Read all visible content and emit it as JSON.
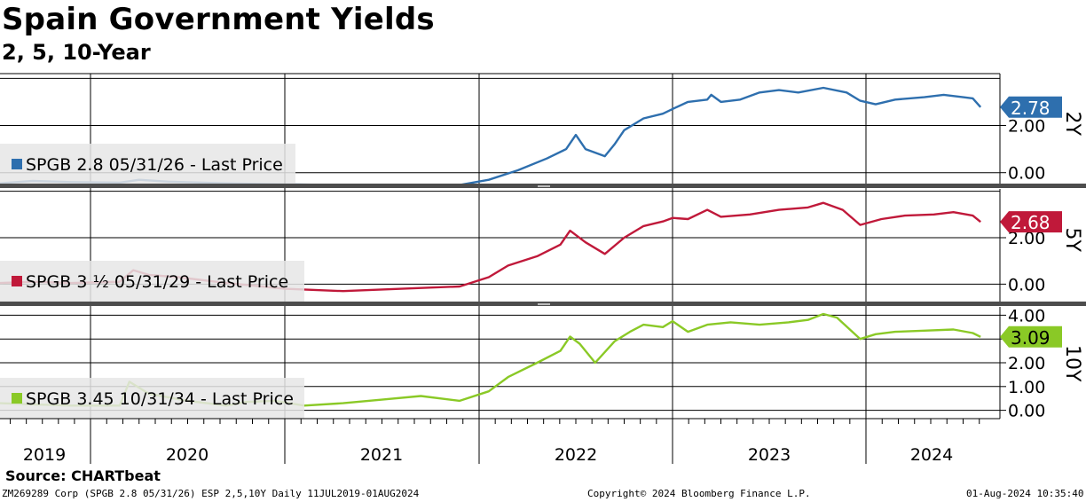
{
  "title": "Spain Government Yields",
  "subtitle": "2, 5, 10-Year",
  "footer": {
    "source": "Source: CHARTbeat",
    "ticker": "ZM269289 Corp (SPGB 2.8 05/31/26) ESP 2,5,10Y  Daily 11JUL2019-01AUG2024",
    "copyright": "Copyright© 2024 Bloomberg Finance L.P.",
    "timestamp": "01-Aug-2024 10:35:40"
  },
  "chart_data": {
    "type": "line",
    "x_axis": {
      "labels": [
        "2019",
        "2020",
        "2021",
        "2022",
        "2023",
        "2024"
      ],
      "range": [
        "2019-07-11",
        "2024-08-01"
      ]
    },
    "panels": [
      {
        "name": "2Y",
        "legend": "SPGB 2.8 05/31/26 - Last Price",
        "color": "#2e6fae",
        "last_value": "2.78",
        "ylim": [
          -0.5,
          4.2
        ],
        "yticks": [
          0.0,
          2.0
        ],
        "ytick_labels": [
          "0.00",
          "2.00"
        ],
        "gridlines": [
          0.0,
          2.0,
          4.0
        ],
        "series": [
          [
            2019.53,
            -0.45
          ],
          [
            2019.7,
            -0.35
          ],
          [
            2019.9,
            -0.4
          ],
          [
            2020.15,
            -0.42
          ],
          [
            2020.25,
            -0.3
          ],
          [
            2020.4,
            -0.38
          ],
          [
            2020.7,
            -0.45
          ],
          [
            2021.0,
            -0.5
          ],
          [
            2021.3,
            -0.52
          ],
          [
            2021.6,
            -0.55
          ],
          [
            2021.9,
            -0.52
          ],
          [
            2022.05,
            -0.3
          ],
          [
            2022.2,
            0.1
          ],
          [
            2022.35,
            0.6
          ],
          [
            2022.45,
            1.0
          ],
          [
            2022.5,
            1.6
          ],
          [
            2022.55,
            1.0
          ],
          [
            2022.65,
            0.7
          ],
          [
            2022.7,
            1.2
          ],
          [
            2022.75,
            1.8
          ],
          [
            2022.85,
            2.3
          ],
          [
            2022.95,
            2.5
          ],
          [
            2023.0,
            2.7
          ],
          [
            2023.08,
            3.0
          ],
          [
            2023.18,
            3.1
          ],
          [
            2023.2,
            3.3
          ],
          [
            2023.25,
            3.0
          ],
          [
            2023.35,
            3.1
          ],
          [
            2023.45,
            3.4
          ],
          [
            2023.55,
            3.5
          ],
          [
            2023.65,
            3.4
          ],
          [
            2023.78,
            3.6
          ],
          [
            2023.9,
            3.4
          ],
          [
            2023.97,
            3.05
          ],
          [
            2024.05,
            2.9
          ],
          [
            2024.15,
            3.1
          ],
          [
            2024.3,
            3.2
          ],
          [
            2024.4,
            3.3
          ],
          [
            2024.5,
            3.2
          ],
          [
            2024.55,
            3.15
          ],
          [
            2024.59,
            2.78
          ]
        ]
      },
      {
        "name": "5Y",
        "legend": "SPGB 3 ½ 05/31/29 - Last Price",
        "color": "#c0193a",
        "last_value": "2.68",
        "ylim": [
          -0.75,
          4.1
        ],
        "yticks": [
          0.0,
          2.0
        ],
        "ytick_labels": [
          "0.00",
          "2.00"
        ],
        "gridlines": [
          0.0,
          2.0,
          4.0
        ],
        "series": [
          [
            2019.53,
            0.05
          ],
          [
            2019.7,
            0.1
          ],
          [
            2019.9,
            0.05
          ],
          [
            2020.15,
            0.1
          ],
          [
            2020.22,
            0.6
          ],
          [
            2020.3,
            0.4
          ],
          [
            2020.45,
            0.3
          ],
          [
            2020.7,
            0.05
          ],
          [
            2021.0,
            -0.2
          ],
          [
            2021.3,
            -0.3
          ],
          [
            2021.6,
            -0.2
          ],
          [
            2021.9,
            -0.1
          ],
          [
            2022.05,
            0.3
          ],
          [
            2022.15,
            0.8
          ],
          [
            2022.3,
            1.2
          ],
          [
            2022.42,
            1.7
          ],
          [
            2022.47,
            2.3
          ],
          [
            2022.55,
            1.8
          ],
          [
            2022.65,
            1.3
          ],
          [
            2022.75,
            2.0
          ],
          [
            2022.85,
            2.5
          ],
          [
            2022.95,
            2.7
          ],
          [
            2023.0,
            2.85
          ],
          [
            2023.08,
            2.8
          ],
          [
            2023.18,
            3.2
          ],
          [
            2023.25,
            2.9
          ],
          [
            2023.4,
            3.0
          ],
          [
            2023.55,
            3.2
          ],
          [
            2023.7,
            3.3
          ],
          [
            2023.78,
            3.5
          ],
          [
            2023.88,
            3.2
          ],
          [
            2023.97,
            2.55
          ],
          [
            2024.08,
            2.8
          ],
          [
            2024.2,
            2.95
          ],
          [
            2024.35,
            3.0
          ],
          [
            2024.45,
            3.1
          ],
          [
            2024.55,
            2.95
          ],
          [
            2024.59,
            2.68
          ]
        ]
      },
      {
        "name": "10Y",
        "legend": "SPGB 3.45 10/31/34 - Last Price",
        "color": "#8ac926",
        "last_value": "3.09",
        "ylim": [
          -0.35,
          4.35
        ],
        "yticks": [
          0.0,
          1.0,
          2.0,
          3.0,
          4.0
        ],
        "ytick_labels": [
          "0.00",
          "1.00",
          "2.00",
          "3.00",
          "4.00"
        ],
        "gridlines": [
          0.0,
          1.0,
          2.0,
          3.0,
          4.0
        ],
        "series": [
          [
            2019.53,
            0.3
          ],
          [
            2019.7,
            0.25
          ],
          [
            2019.9,
            0.2
          ],
          [
            2020.15,
            0.2
          ],
          [
            2020.2,
            1.2
          ],
          [
            2020.3,
            0.7
          ],
          [
            2020.5,
            0.4
          ],
          [
            2020.7,
            0.2
          ],
          [
            2020.8,
            0.35
          ],
          [
            2020.95,
            0.4
          ],
          [
            2021.1,
            0.2
          ],
          [
            2021.3,
            0.3
          ],
          [
            2021.5,
            0.45
          ],
          [
            2021.7,
            0.6
          ],
          [
            2021.9,
            0.4
          ],
          [
            2022.05,
            0.8
          ],
          [
            2022.15,
            1.4
          ],
          [
            2022.3,
            2.0
          ],
          [
            2022.42,
            2.5
          ],
          [
            2022.47,
            3.1
          ],
          [
            2022.52,
            2.8
          ],
          [
            2022.6,
            2.0
          ],
          [
            2022.7,
            2.9
          ],
          [
            2022.78,
            3.3
          ],
          [
            2022.85,
            3.6
          ],
          [
            2022.95,
            3.5
          ],
          [
            2023.0,
            3.75
          ],
          [
            2023.08,
            3.3
          ],
          [
            2023.18,
            3.6
          ],
          [
            2023.3,
            3.7
          ],
          [
            2023.45,
            3.6
          ],
          [
            2023.6,
            3.7
          ],
          [
            2023.7,
            3.8
          ],
          [
            2023.78,
            4.05
          ],
          [
            2023.85,
            3.9
          ],
          [
            2023.97,
            3.0
          ],
          [
            2024.05,
            3.2
          ],
          [
            2024.15,
            3.3
          ],
          [
            2024.3,
            3.35
          ],
          [
            2024.45,
            3.4
          ],
          [
            2024.55,
            3.25
          ],
          [
            2024.59,
            3.09
          ]
        ]
      }
    ]
  }
}
